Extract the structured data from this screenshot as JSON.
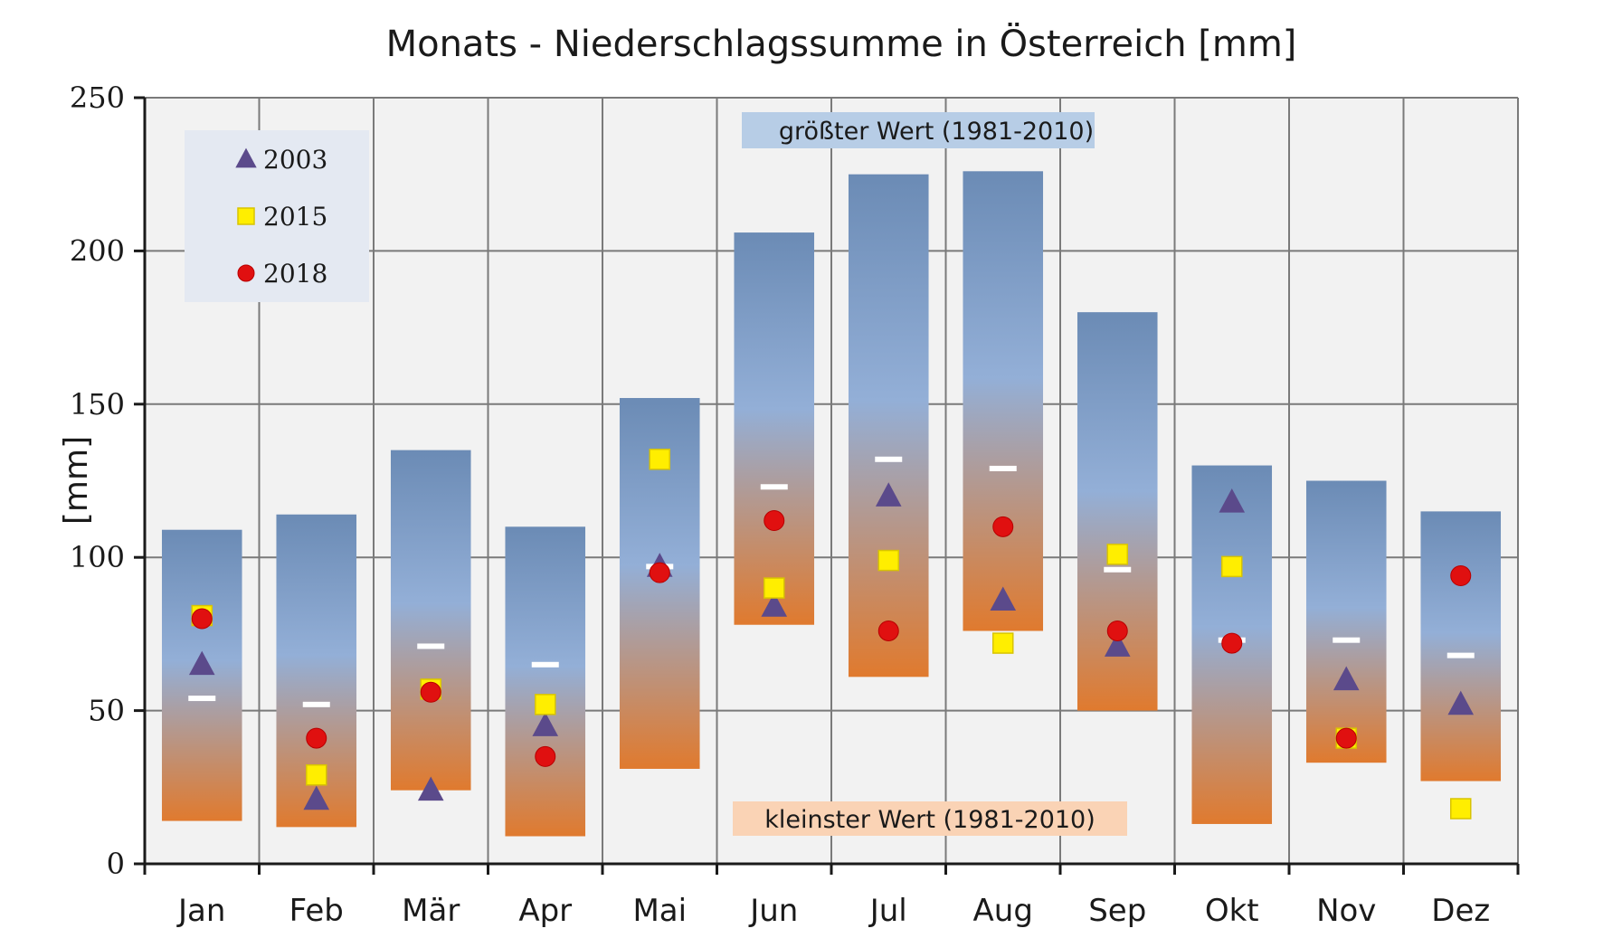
{
  "chart_data": {
    "type": "bar",
    "title": "Monats - Niederschlagssumme  in Österreich  [mm]",
    "ylabel": "[mm]",
    "xlabel": "",
    "ylim": [
      0,
      250
    ],
    "yticks": [
      0,
      50,
      100,
      150,
      200,
      250
    ],
    "grid": true,
    "categories": [
      "Jan",
      "Feb",
      "Mär",
      "Apr",
      "Mai",
      "Jun",
      "Jul",
      "Aug",
      "Sep",
      "Okt",
      "Nov",
      "Dez"
    ],
    "range_bars": {
      "max": [
        109,
        114,
        135,
        110,
        152,
        206,
        225,
        226,
        180,
        130,
        125,
        115
      ],
      "min": [
        14,
        12,
        24,
        9,
        31,
        78,
        61,
        76,
        50,
        13,
        33,
        27
      ],
      "mean": [
        54,
        52,
        71,
        65,
        97,
        123,
        132,
        129,
        96,
        73,
        73,
        68
      ],
      "max_label": "größter Wert (1981-2010)",
      "min_label": "kleinster Wert (1981-2010)",
      "top_color": "#6b8bb5",
      "mid_color": "#93afd7",
      "bottom_color": "#e07a2e"
    },
    "series": [
      {
        "name": "2003",
        "marker": "triangle",
        "color": "#5b4a8b",
        "values": [
          65,
          21,
          24,
          45,
          97,
          84,
          120,
          86,
          71,
          118,
          60,
          52
        ]
      },
      {
        "name": "2015",
        "marker": "square",
        "color": "#ffee00",
        "values": [
          81,
          29,
          57,
          52,
          132,
          90,
          99,
          72,
          101,
          97,
          41,
          18
        ]
      },
      {
        "name": "2018",
        "marker": "circle",
        "color": "#e01010",
        "values": [
          80,
          41,
          56,
          35,
          95,
          112,
          76,
          110,
          76,
          72,
          41,
          94
        ]
      }
    ],
    "legend_position": "top-left"
  }
}
